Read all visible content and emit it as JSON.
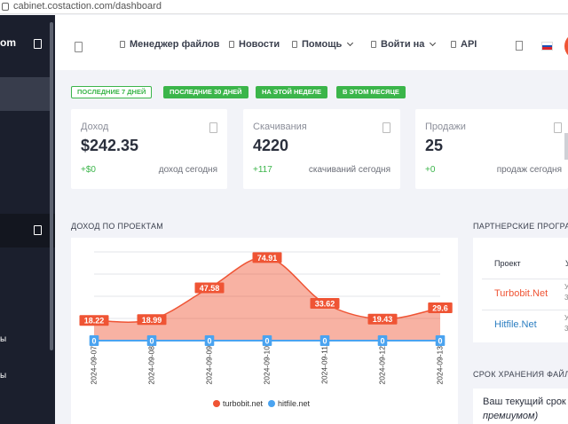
{
  "browser": {
    "url": "cabinet.costaction.com/dashboard"
  },
  "sidebar": {
    "brand_partial": "om",
    "partial_items": [
      "ы",
      "ы"
    ]
  },
  "topnav": {
    "items": [
      {
        "label": "Менеджер файлов",
        "dropdown": false
      },
      {
        "label": "Новости",
        "dropdown": false
      },
      {
        "label": "Помощь",
        "dropdown": true
      },
      {
        "label": "Войти на",
        "dropdown": true
      },
      {
        "label": "API",
        "dropdown": false
      }
    ],
    "language_flag": "ru"
  },
  "filters": [
    {
      "label": "ПОСЛЕДНИЕ 7 ДНЕЙ",
      "active": false
    },
    {
      "label": "ПОСЛЕДНИЕ 30 ДНЕЙ",
      "active": true
    },
    {
      "label": "НА ЭТОЙ НЕДЕЛЕ",
      "active": true
    },
    {
      "label": "В ЭТОМ МЕСЯЦЕ",
      "active": true
    }
  ],
  "stats": [
    {
      "label": "Доход",
      "value": "$242.35",
      "delta": "+$0",
      "caption": "доход сегодня"
    },
    {
      "label": "Скачивания",
      "value": "4220",
      "delta": "+117",
      "caption": "скачиваний сегодня"
    },
    {
      "label": "Продажи",
      "value": "25",
      "delta": "+0",
      "caption": "продаж сегодня"
    }
  ],
  "income_section": {
    "title": "ДОХОД ПО ПРОЕКТАМ"
  },
  "chart_data": {
    "type": "area",
    "categories": [
      "2024-09-07",
      "2024-09-08",
      "2024-09-09",
      "2024-09-10",
      "2024-09-11",
      "2024-09-12",
      "2024-09-13"
    ],
    "series": [
      {
        "name": "turbobit.net",
        "color": "#ef5434",
        "values": [
          18.22,
          18.99,
          47.58,
          74.91,
          33.62,
          19.43,
          29.6
        ],
        "labels": [
          "18.22",
          "18.99",
          "47.58",
          "74.91",
          "33.62",
          "19.43",
          "29.6"
        ]
      },
      {
        "name": "hitfile.net",
        "color": "#4aa3f0",
        "values": [
          0,
          0,
          0,
          0,
          0,
          0,
          0
        ],
        "labels": [
          "0",
          "0",
          "0",
          "0",
          "0",
          "0",
          "0"
        ]
      }
    ],
    "ylim": [
      0,
      80
    ],
    "grid": true,
    "legend": "bottom"
  },
  "partner_section": {
    "title": "ПАРТНЕРСКИЕ ПРОГРАММЫ",
    "header_project": "Проект",
    "header_partial": "У",
    "rows": [
      "Turbobit.Net",
      "Hitfile.Net"
    ],
    "cut_marks": [
      "У",
      "3",
      "У",
      "3"
    ]
  },
  "storage_section": {
    "title": "СРОК ХРАНЕНИЯ ФАЙЛОВ",
    "line1": "Ваш текущий срок",
    "line2": "премиумом)"
  }
}
